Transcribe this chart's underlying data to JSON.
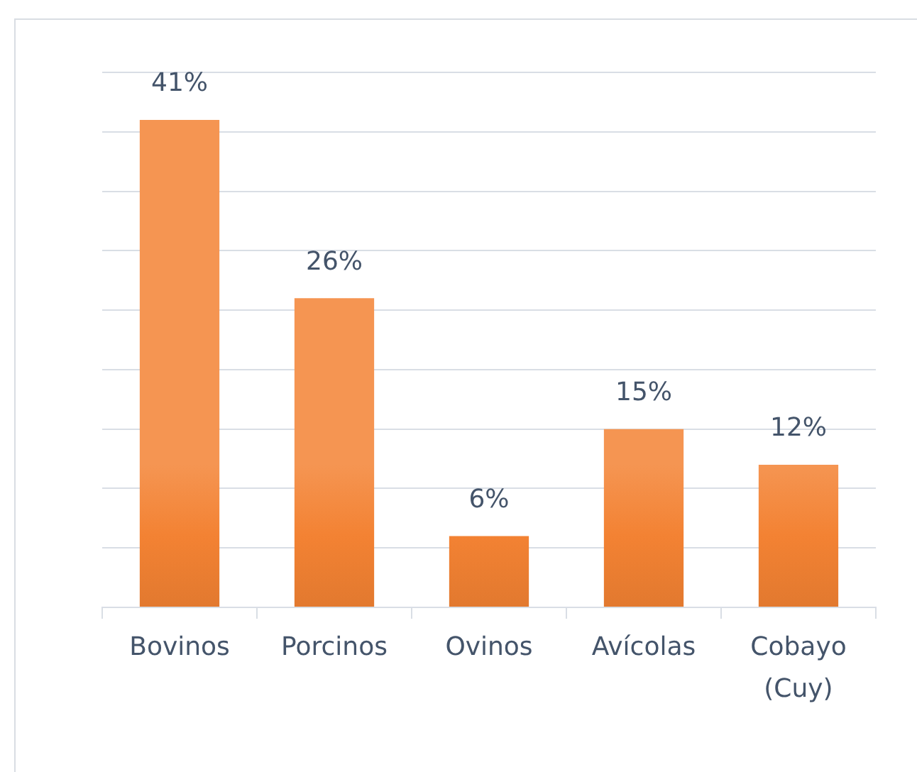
{
  "chart_data": {
    "type": "bar",
    "categories": [
      "Bovinos",
      "Porcinos",
      "Ovinos",
      "Avícolas",
      "Cobayo (Cuy)"
    ],
    "values": [
      41,
      26,
      6,
      15,
      12
    ],
    "value_labels": [
      "41%",
      "26%",
      "6%",
      "15%",
      "12%"
    ],
    "color": "#f38233",
    "ylim": [
      0,
      45
    ],
    "yticks": [
      {
        "value": 0,
        "label": null
      },
      {
        "value": 5,
        "label": null
      },
      {
        "value": 10,
        "label": null
      },
      {
        "value": 15,
        "label": null
      },
      {
        "value": 20,
        "label": null
      },
      {
        "value": 25,
        "label": null
      },
      {
        "value": 30,
        "label": null
      },
      {
        "value": 35,
        "label": null
      },
      {
        "value": 40,
        "label": null
      },
      {
        "value": 45,
        "label": null
      }
    ],
    "grid": "y",
    "tick_labels": "x"
  }
}
